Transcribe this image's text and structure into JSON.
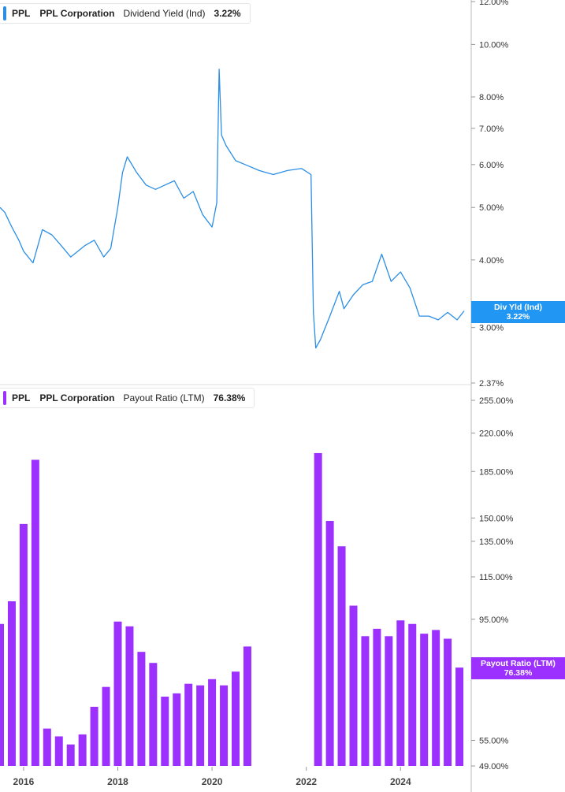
{
  "colors": {
    "line": "#2b8ee6",
    "bar": "#9b30ff",
    "tag_top": "#2196f3",
    "tag_bottom": "#9b30ff",
    "axis_text": "#333333"
  },
  "legend_top": {
    "ticker": "PPL",
    "company": "PPL Corporation",
    "metric": "Dividend Yield (Ind)",
    "value": "3.22%"
  },
  "legend_bottom": {
    "ticker": "PPL",
    "company": "PPL Corporation",
    "metric": "Payout Ratio (LTM)",
    "value": "76.38%"
  },
  "tag_top": {
    "label": "Div Yld (Ind)",
    "value": "3.22%"
  },
  "tag_bottom": {
    "label": "Payout Ratio (LTM)",
    "value": "76.38%"
  },
  "chart_data": [
    {
      "type": "line",
      "title": "Dividend Yield (Ind)",
      "y_scale": "log",
      "ylim": [
        2.37,
        12.0
      ],
      "y_ticks": [
        "12.00%",
        "10.00%",
        "8.00%",
        "7.00%",
        "6.00%",
        "5.00%",
        "4.00%",
        "3.00%",
        "2.37%"
      ],
      "y_tick_values": [
        12.0,
        10.0,
        8.0,
        7.0,
        6.0,
        5.0,
        4.0,
        3.0,
        2.37
      ],
      "x_range": [
        2015.5,
        2025.5
      ],
      "series": [
        {
          "name": "Dividend Yield (Ind)",
          "x": [
            2015.5,
            2015.6,
            2015.75,
            2015.9,
            2016.0,
            2016.2,
            2016.4,
            2016.6,
            2016.8,
            2017.0,
            2017.3,
            2017.5,
            2017.7,
            2017.85,
            2018.0,
            2018.1,
            2018.2,
            2018.4,
            2018.6,
            2018.8,
            2019.0,
            2019.2,
            2019.4,
            2019.6,
            2019.8,
            2020.0,
            2020.1,
            2020.15,
            2020.2,
            2020.3,
            2020.5,
            2020.7,
            2021.0,
            2021.3,
            2021.6,
            2021.9,
            2022.1,
            2022.15,
            2022.2,
            2022.3,
            2022.5,
            2022.7,
            2022.8,
            2023.0,
            2023.2,
            2023.4,
            2023.6,
            2023.8,
            2024.0,
            2024.2,
            2024.4,
            2024.6,
            2024.8,
            2025.0,
            2025.2,
            2025.35
          ],
          "values": [
            5.0,
            4.9,
            4.6,
            4.35,
            4.15,
            3.95,
            4.55,
            4.45,
            4.25,
            4.05,
            4.25,
            4.35,
            4.05,
            4.2,
            5.0,
            5.8,
            6.2,
            5.8,
            5.5,
            5.4,
            5.5,
            5.6,
            5.2,
            5.35,
            4.85,
            4.6,
            5.1,
            9.0,
            6.8,
            6.5,
            6.1,
            6.0,
            5.85,
            5.75,
            5.85,
            5.9,
            5.75,
            3.2,
            2.75,
            2.85,
            3.15,
            3.5,
            3.25,
            3.45,
            3.6,
            3.65,
            4.1,
            3.65,
            3.8,
            3.55,
            3.15,
            3.15,
            3.1,
            3.2,
            3.1,
            3.22
          ]
        }
      ]
    },
    {
      "type": "bar",
      "title": "Payout Ratio (LTM)",
      "y_scale": "log",
      "ylim": [
        49.0,
        255.0
      ],
      "y_ticks": [
        "255.00%",
        "220.00%",
        "185.00%",
        "150.00%",
        "135.00%",
        "115.00%",
        "95.00%",
        "55.00%",
        "49.00%"
      ],
      "y_tick_values": [
        255.0,
        220.0,
        185.0,
        150.0,
        135.0,
        115.0,
        95.0,
        55.0,
        49.0
      ],
      "x_range": [
        2015.5,
        2025.5
      ],
      "x_ticks": [
        "2016",
        "2018",
        "2020",
        "2022",
        "2024"
      ],
      "x_tick_values": [
        2016,
        2018,
        2020,
        2022,
        2024
      ],
      "series": [
        {
          "name": "Payout Ratio (LTM)",
          "x": [
            2015.5,
            2015.75,
            2016.0,
            2016.25,
            2016.5,
            2016.75,
            2017.0,
            2017.25,
            2017.5,
            2017.75,
            2018.0,
            2018.25,
            2018.5,
            2018.75,
            2019.0,
            2019.25,
            2019.5,
            2019.75,
            2020.0,
            2020.25,
            2020.5,
            2020.75,
            2022.25,
            2022.5,
            2022.75,
            2023.0,
            2023.25,
            2023.5,
            2023.75,
            2024.0,
            2024.25,
            2024.5,
            2024.75,
            2025.0,
            2025.25
          ],
          "values": [
            93,
            103,
            146,
            195,
            58,
            56,
            54,
            56.5,
            64,
            70,
            94,
            92,
            82,
            78,
            67,
            68,
            71,
            70.5,
            72.5,
            70.5,
            75,
            84,
            201,
            148,
            132,
            101,
            88,
            91,
            88,
            94.5,
            93,
            89,
            90.5,
            87,
            76.38
          ]
        }
      ]
    }
  ]
}
